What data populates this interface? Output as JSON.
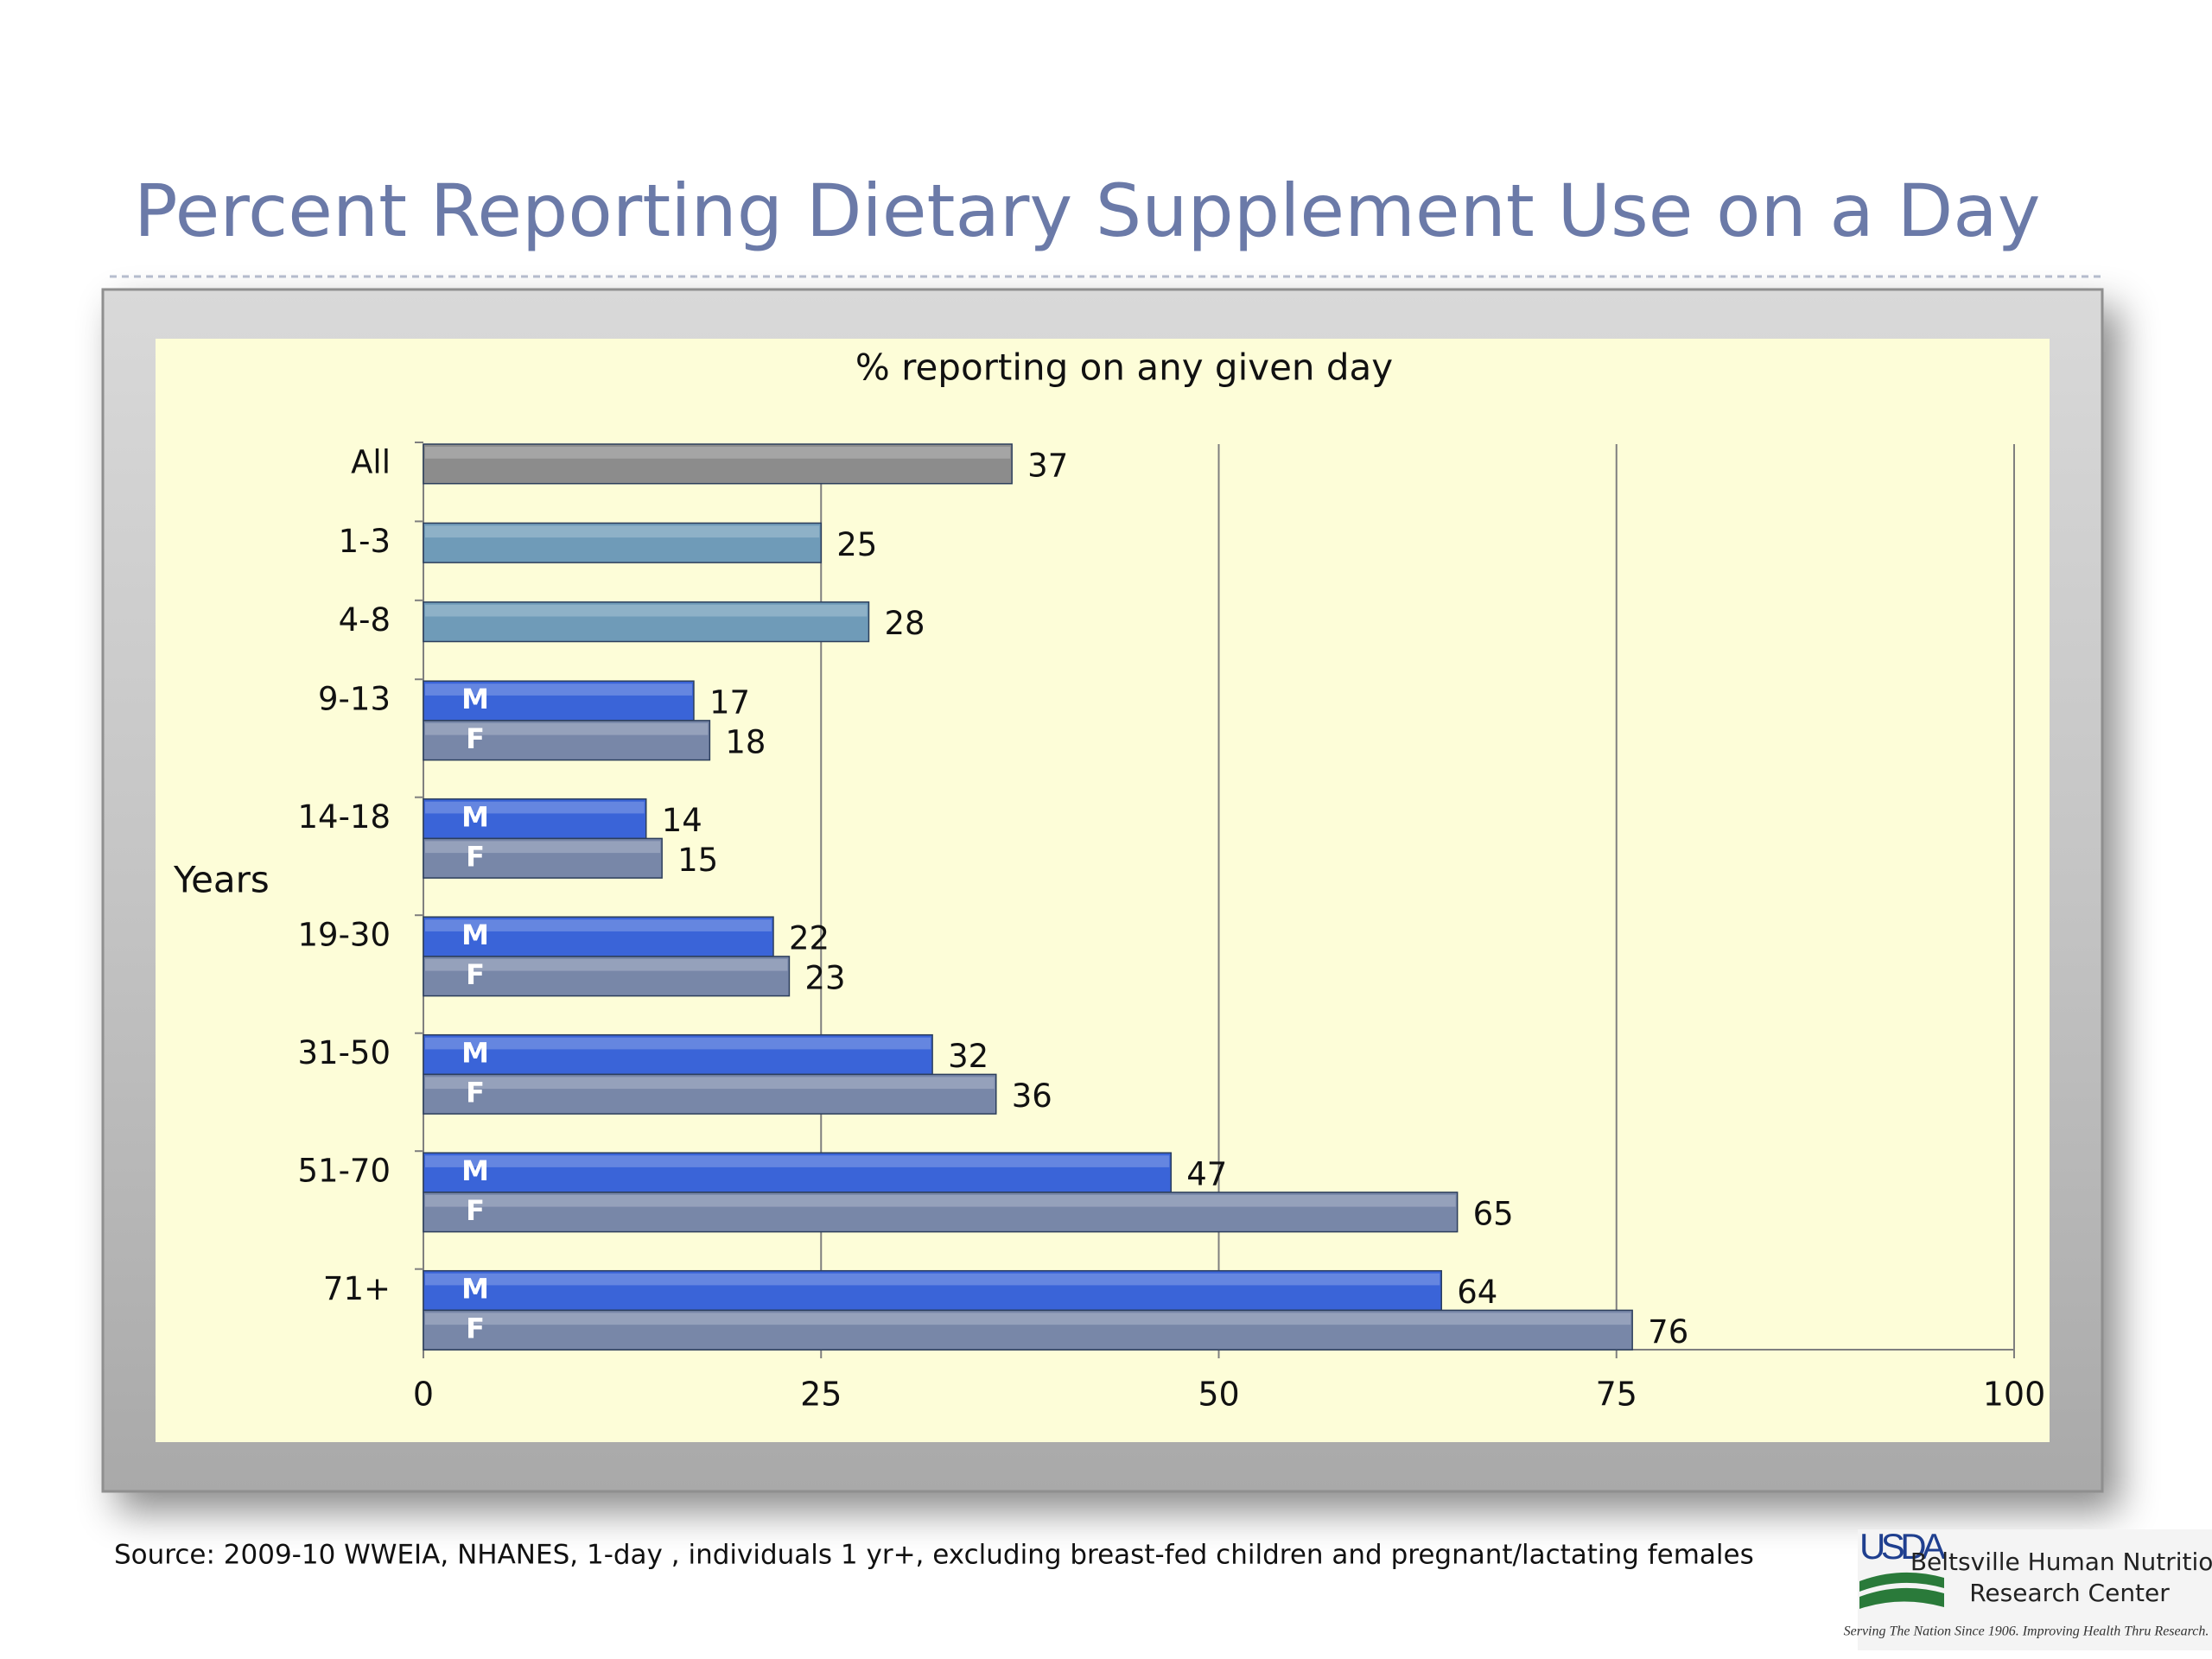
{
  "slide": {
    "title": "Percent Reporting Dietary Supplement Use on a Day",
    "source": "Source:  2009-10 WWEIA, NHANES, 1-day , individuals 1 yr+, excluding breast-fed children and pregnant/lactating females",
    "logo": {
      "mark": "USDA",
      "name_line1": "Beltsville Human Nutrition",
      "name_line2": "Research Center",
      "tagline": "Serving The Nation Since 1906. Improving Health Thru Research."
    }
  },
  "chart_data": {
    "type": "bar",
    "orientation": "horizontal",
    "title": "% reporting on any given day",
    "y_axis_label": "Years",
    "categories": [
      "All",
      "1-3",
      "4-8",
      "9-13",
      "14-18",
      "19-30",
      "31-50",
      "51-70",
      "71+"
    ],
    "series": [
      {
        "colors": [
          "#8c8c8c",
          "#6f9bb8",
          "#6f9bb8",
          null,
          null,
          null,
          null,
          null,
          null
        ],
        "values": [
          37,
          25,
          28,
          null,
          null,
          null,
          null,
          null,
          null
        ]
      },
      {
        "name": "M",
        "color": "#3a64d8",
        "values": [
          null,
          null,
          null,
          17,
          14,
          22,
          32,
          47,
          64
        ]
      },
      {
        "name": "F",
        "color": "#7887a8",
        "values": [
          null,
          null,
          null,
          18,
          15,
          23,
          36,
          65,
          76
        ]
      }
    ],
    "xlim": [
      0,
      100
    ],
    "xticks": [
      0,
      25,
      50,
      75,
      100
    ],
    "grid": true
  }
}
